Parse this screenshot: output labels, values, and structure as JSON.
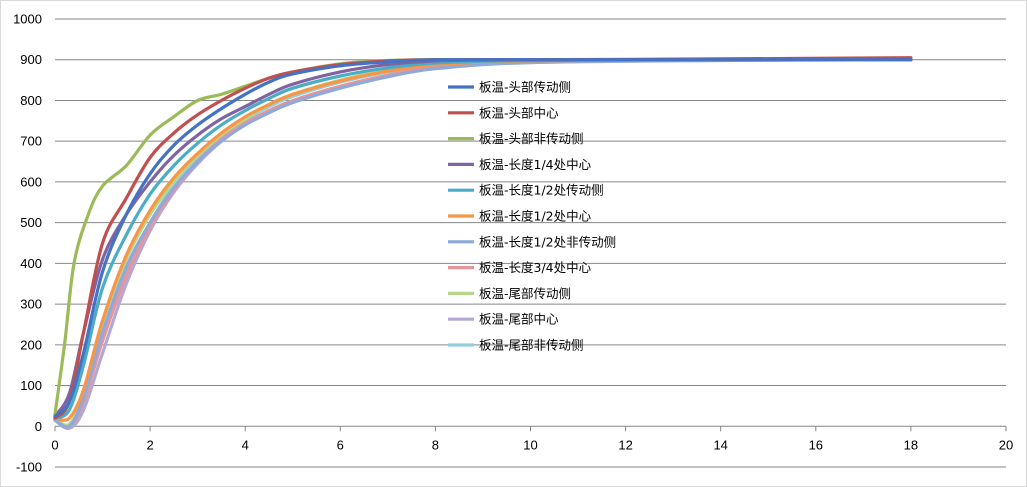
{
  "chart_data": {
    "type": "line",
    "title": "",
    "xlabel": "",
    "ylabel": "",
    "xlim": [
      0,
      20
    ],
    "ylim": [
      -100,
      1000
    ],
    "x_ticks": [
      "0",
      "2",
      "4",
      "6",
      "8",
      "10",
      "12",
      "14",
      "16",
      "18",
      "20"
    ],
    "y_ticks": [
      "-100",
      "0",
      "100",
      "200",
      "300",
      "400",
      "500",
      "600",
      "700",
      "800",
      "900",
      "1000"
    ],
    "grid": "horizontal",
    "legend_position": "center-right",
    "series": [
      {
        "name": "板温-头部传动侧",
        "color": "#4472C4",
        "points": [
          [
            0,
            25
          ],
          [
            0.3,
            60
          ],
          [
            0.6,
            180
          ],
          [
            1,
            380
          ],
          [
            1.5,
            520
          ],
          [
            2,
            620
          ],
          [
            2.5,
            690
          ],
          [
            3,
            740
          ],
          [
            3.5,
            780
          ],
          [
            4,
            815
          ],
          [
            4.5,
            845
          ],
          [
            5,
            865
          ],
          [
            6,
            885
          ],
          [
            7,
            895
          ],
          [
            8,
            900
          ],
          [
            10,
            900
          ],
          [
            14,
            900
          ],
          [
            18,
            900
          ]
        ]
      },
      {
        "name": "板温-头部中心",
        "color": "#C0504D",
        "points": [
          [
            0,
            20
          ],
          [
            0.3,
            60
          ],
          [
            0.6,
            230
          ],
          [
            1,
            450
          ],
          [
            1.5,
            560
          ],
          [
            2,
            660
          ],
          [
            2.5,
            720
          ],
          [
            3,
            765
          ],
          [
            3.5,
            800
          ],
          [
            4,
            830
          ],
          [
            4.5,
            855
          ],
          [
            5,
            870
          ],
          [
            6,
            888
          ],
          [
            7,
            897
          ],
          [
            8,
            900
          ],
          [
            10,
            900
          ],
          [
            14,
            902
          ],
          [
            18,
            905
          ]
        ]
      },
      {
        "name": "板温-头部非传动侧",
        "color": "#9BBB59",
        "points": [
          [
            0,
            30
          ],
          [
            0.2,
            200
          ],
          [
            0.4,
            400
          ],
          [
            0.7,
            520
          ],
          [
            1,
            590
          ],
          [
            1.5,
            640
          ],
          [
            2,
            715
          ],
          [
            2.5,
            760
          ],
          [
            3,
            800
          ],
          [
            3.5,
            815
          ],
          [
            4,
            835
          ],
          [
            4.5,
            855
          ],
          [
            5,
            870
          ],
          [
            6,
            890
          ],
          [
            7,
            898
          ],
          [
            8,
            900
          ],
          [
            10,
            900
          ],
          [
            14,
            900
          ],
          [
            18,
            900
          ]
        ]
      },
      {
        "name": "板温-长度1/4处中心",
        "color": "#8064A2",
        "points": [
          [
            0,
            25
          ],
          [
            0.3,
            80
          ],
          [
            0.6,
            230
          ],
          [
            1,
            410
          ],
          [
            1.5,
            520
          ],
          [
            2,
            600
          ],
          [
            2.5,
            665
          ],
          [
            3,
            715
          ],
          [
            3.5,
            755
          ],
          [
            4,
            785
          ],
          [
            4.5,
            815
          ],
          [
            5,
            840
          ],
          [
            6,
            870
          ],
          [
            7,
            888
          ],
          [
            8,
            897
          ],
          [
            10,
            900
          ],
          [
            14,
            900
          ],
          [
            18,
            900
          ]
        ]
      },
      {
        "name": "板温-长度1/2处传动侧",
        "color": "#4BACC6",
        "points": [
          [
            0,
            20
          ],
          [
            0.3,
            40
          ],
          [
            0.6,
            150
          ],
          [
            1,
            340
          ],
          [
            1.5,
            470
          ],
          [
            2,
            570
          ],
          [
            2.5,
            640
          ],
          [
            3,
            695
          ],
          [
            3.5,
            740
          ],
          [
            4,
            775
          ],
          [
            4.5,
            805
          ],
          [
            5,
            830
          ],
          [
            6,
            860
          ],
          [
            7,
            880
          ],
          [
            8,
            892
          ],
          [
            10,
            898
          ],
          [
            14,
            900
          ],
          [
            18,
            900
          ]
        ]
      },
      {
        "name": "板温-长度1/2处中心",
        "color": "#F79646",
        "points": [
          [
            0,
            20
          ],
          [
            0.3,
            20
          ],
          [
            0.6,
            90
          ],
          [
            1,
            260
          ],
          [
            1.5,
            420
          ],
          [
            2,
            530
          ],
          [
            2.5,
            610
          ],
          [
            3,
            670
          ],
          [
            3.5,
            720
          ],
          [
            4,
            760
          ],
          [
            4.5,
            790
          ],
          [
            5,
            815
          ],
          [
            6,
            848
          ],
          [
            7,
            872
          ],
          [
            8,
            888
          ],
          [
            10,
            897
          ],
          [
            14,
            900
          ],
          [
            18,
            900
          ]
        ]
      },
      {
        "name": "板温-长度1/2处非传动侧",
        "color": "#8EA9DB",
        "points": [
          [
            0,
            15
          ],
          [
            0.3,
            0
          ],
          [
            0.6,
            70
          ],
          [
            1,
            230
          ],
          [
            1.5,
            390
          ],
          [
            2,
            500
          ],
          [
            2.5,
            585
          ],
          [
            3,
            650
          ],
          [
            3.5,
            700
          ],
          [
            4,
            740
          ],
          [
            4.5,
            770
          ],
          [
            5,
            795
          ],
          [
            6,
            830
          ],
          [
            7,
            858
          ],
          [
            8,
            878
          ],
          [
            10,
            893
          ],
          [
            14,
            898
          ],
          [
            18,
            900
          ]
        ]
      },
      {
        "name": "板温-长度3/4处中心",
        "color": "#E6969A",
        "points": [
          [
            0,
            15
          ],
          [
            0.3,
            0
          ],
          [
            0.6,
            60
          ],
          [
            1,
            210
          ],
          [
            1.5,
            370
          ],
          [
            2,
            490
          ],
          [
            2.5,
            580
          ],
          [
            3,
            650
          ],
          [
            3.5,
            705
          ],
          [
            4,
            745
          ],
          [
            4.5,
            775
          ],
          [
            5,
            800
          ],
          [
            6,
            835
          ],
          [
            7,
            862
          ],
          [
            8,
            882
          ],
          [
            10,
            895
          ],
          [
            14,
            900
          ],
          [
            18,
            900
          ]
        ]
      },
      {
        "name": "板温-尾部传动侧",
        "color": "#B8D68A",
        "points": [
          [
            0,
            20
          ],
          [
            0.3,
            5
          ],
          [
            0.6,
            80
          ],
          [
            1,
            250
          ],
          [
            1.5,
            410
          ],
          [
            2,
            520
          ],
          [
            2.5,
            600
          ],
          [
            3,
            665
          ],
          [
            3.5,
            715
          ],
          [
            4,
            755
          ],
          [
            4.5,
            790
          ],
          [
            5,
            815
          ],
          [
            6,
            850
          ],
          [
            7,
            875
          ],
          [
            8,
            890
          ],
          [
            10,
            897
          ],
          [
            14,
            900
          ],
          [
            18,
            900
          ]
        ]
      },
      {
        "name": "板温-尾部中心",
        "color": "#B4A7D6",
        "points": [
          [
            0,
            15
          ],
          [
            0.3,
            -5
          ],
          [
            0.6,
            40
          ],
          [
            1,
            180
          ],
          [
            1.5,
            350
          ],
          [
            2,
            480
          ],
          [
            2.5,
            575
          ],
          [
            3,
            645
          ],
          [
            3.5,
            700
          ],
          [
            4,
            740
          ],
          [
            4.5,
            770
          ],
          [
            5,
            795
          ],
          [
            6,
            832
          ],
          [
            7,
            860
          ],
          [
            8,
            880
          ],
          [
            10,
            894
          ],
          [
            14,
            899
          ],
          [
            18,
            900
          ]
        ]
      },
      {
        "name": "板温-尾部非传动侧",
        "color": "#92CDDC",
        "points": [
          [
            0,
            15
          ],
          [
            0.3,
            0
          ],
          [
            0.6,
            60
          ],
          [
            1,
            220
          ],
          [
            1.5,
            380
          ],
          [
            2,
            500
          ],
          [
            2.5,
            590
          ],
          [
            3,
            660
          ],
          [
            3.5,
            712
          ],
          [
            4,
            752
          ],
          [
            4.5,
            785
          ],
          [
            5,
            810
          ],
          [
            6,
            845
          ],
          [
            7,
            870
          ],
          [
            8,
            886
          ],
          [
            10,
            896
          ],
          [
            14,
            900
          ],
          [
            18,
            900
          ]
        ]
      }
    ]
  }
}
